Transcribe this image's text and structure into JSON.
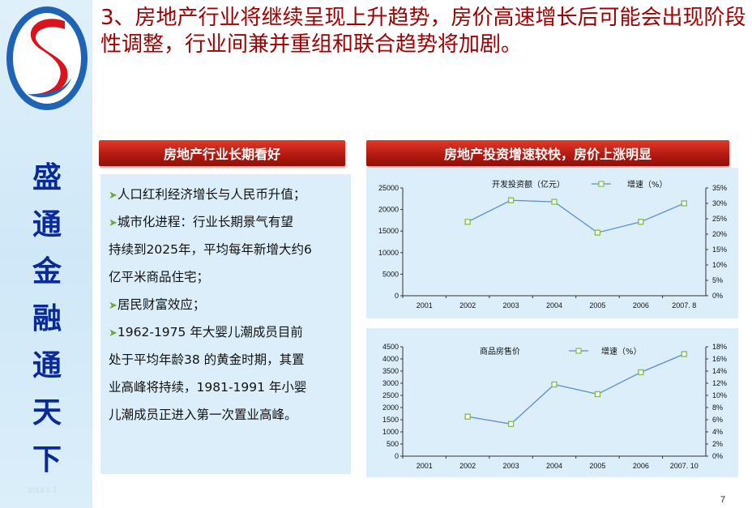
{
  "title": "3、房地产行业将继续呈现上升趋势，房价高速增长后可能会出现阶段性调整，行业间兼并重组和联合趋势将加剧。",
  "sidebar": {
    "slogan": [
      "盛",
      "通",
      "金",
      "融",
      "通",
      "天",
      "下"
    ],
    "date": "2013-1-7"
  },
  "left_panel": {
    "header": "房地产行业长期看好",
    "points": [
      "人口红利经济增长与人民币升值；",
      "城市化进程：行业长期景气有望",
      "持续到2025年，平均每年新增大约6",
      "亿平米商品住宅；",
      "居民财富效应；",
      "1962-1975 年大婴儿潮成员目前",
      "处于平均年龄38 的黄金时期，其置",
      "业高峰将持续，1981-1991 年小婴",
      "儿潮成员正进入第一次置业高峰。"
    ]
  },
  "right_panel": {
    "header": "房地产投资增速较快，房价上涨明显"
  },
  "page_number": "7",
  "colors": {
    "title_red": "#a00000",
    "slogan_blue": "#0a2a9a",
    "line_blue": "#5b8bd0",
    "marker_green": "#7fbf3f"
  },
  "chart_data": [
    {
      "type": "line",
      "legend": [
        "开发投资额（亿元）",
        "增速（%）"
      ],
      "categories": [
        "2001",
        "2002",
        "2003",
        "2004",
        "2005",
        "2006",
        "2007. 8"
      ],
      "left_ticks": [
        "0",
        "5000",
        "10000",
        "15000",
        "20000",
        "25000"
      ],
      "right_ticks": [
        "0%",
        "5%",
        "10%",
        "15%",
        "20%",
        "25%",
        "30%",
        "35%"
      ],
      "ylim_right": [
        0,
        35
      ],
      "series": [
        {
          "name": "增速（%）",
          "axis": "right",
          "values": [
            null,
            24,
            31,
            30.5,
            20.5,
            24,
            30
          ]
        }
      ]
    },
    {
      "type": "line",
      "legend": [
        "商品房售价",
        "增速（%）"
      ],
      "categories": [
        "2001",
        "2002",
        "2003",
        "2004",
        "2005",
        "2006",
        "2007. 10"
      ],
      "left_ticks": [
        "0",
        "500",
        "1000",
        "1500",
        "2000",
        "2500",
        "3000",
        "3500",
        "4000",
        "4500"
      ],
      "right_ticks": [
        "0%",
        "2%",
        "4%",
        "6%",
        "8%",
        "10%",
        "12%",
        "14%",
        "16%",
        "18%"
      ],
      "ylim_right": [
        0,
        18
      ],
      "series": [
        {
          "name": "增速（%）",
          "axis": "right",
          "values": [
            null,
            6.5,
            5.3,
            11.8,
            10.2,
            13.8,
            16.8
          ]
        }
      ]
    }
  ]
}
